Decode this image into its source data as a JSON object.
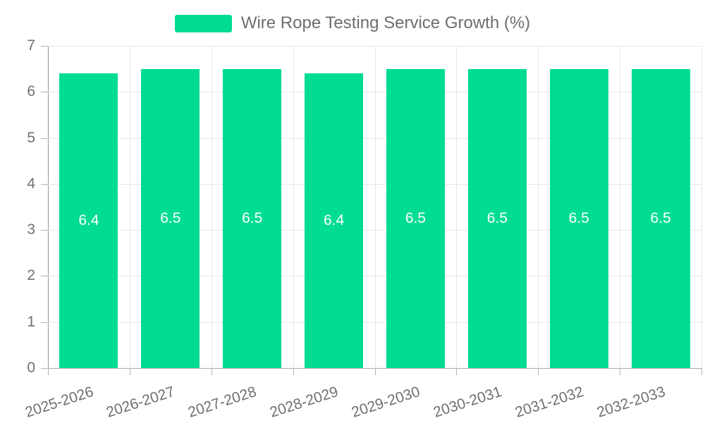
{
  "legend": {
    "label": "Wire Rope Testing Service Growth (%)"
  },
  "chart_data": {
    "type": "bar",
    "title": "Wire Rope Testing Service Growth (%)",
    "categories": [
      "2025-2026",
      "2026-2027",
      "2027-2028",
      "2028-2029",
      "2029-2030",
      "2030-2031",
      "2031-2032",
      "2032-2033"
    ],
    "series": [
      {
        "name": "Wire Rope Testing Service Growth (%)",
        "color": "#00DC92",
        "values": [
          6.4,
          6.5,
          6.5,
          6.4,
          6.5,
          6.5,
          6.5,
          6.5
        ]
      }
    ],
    "value_labels": [
      "6.4",
      "6.5",
      "6.5",
      "6.4",
      "6.5",
      "6.5",
      "6.5",
      "6.5"
    ],
    "xlabel": "",
    "ylabel": "",
    "ylim": [
      0,
      7
    ],
    "ytick_step": 1,
    "ytick_labels": [
      "0",
      "1",
      "2",
      "3",
      "4",
      "5",
      "6",
      "7"
    ],
    "grid": true,
    "legend_position": "top-center",
    "x_label_rotation_deg": -18
  },
  "colors": {
    "bar": "#00DC92",
    "grid": "#e7e7e7",
    "axis_y": "#999999",
    "axis_x": "#ababab",
    "tick": "#b3b3b3",
    "axis_text": "#707070",
    "legend_text": "#6e6e6e",
    "value_text": "#ffffff",
    "background": "#ffffff"
  }
}
